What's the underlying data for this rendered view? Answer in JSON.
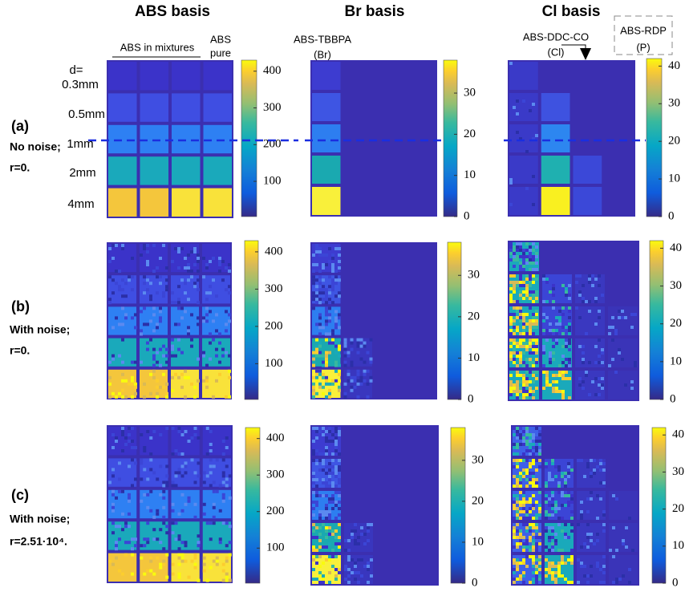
{
  "column_titles": [
    "ABS basis",
    "Br basis",
    "Cl basis"
  ],
  "annotations": {
    "abs_mixtures": "ABS in mixtures",
    "abs_pure": [
      "ABS",
      "pure"
    ],
    "br_sample": [
      "ABS-TBBPA",
      "(Br)"
    ],
    "cl_sample": [
      "ABS-DDC-CO",
      "(Cl)"
    ],
    "p_sample": [
      "ABS-RDP",
      "(P)"
    ]
  },
  "thickness": {
    "label": "d=",
    "values": [
      "0.3mm",
      "0.5mm",
      "1mm",
      "2mm",
      "4mm"
    ]
  },
  "rows": [
    {
      "label": "(a)",
      "lines": [
        "No noise;",
        "r=0."
      ]
    },
    {
      "label": "(b)",
      "lines": [
        "With noise;",
        "r=0."
      ]
    },
    {
      "label": "(c)",
      "lines": [
        "With noise;",
        "r=2.51·10⁴."
      ]
    }
  ],
  "colorbars": [
    {
      "range": [
        4,
        430
      ],
      "ticks": [
        100,
        200,
        300,
        400
      ]
    },
    {
      "range": [
        0,
        38
      ],
      "ticks": [
        0,
        10,
        20,
        30
      ]
    },
    {
      "range": [
        0,
        42
      ],
      "ticks": [
        0,
        10,
        20,
        30,
        40
      ]
    }
  ]
}
